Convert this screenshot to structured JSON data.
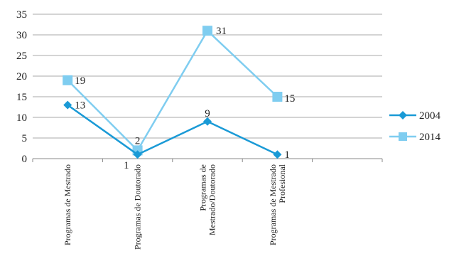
{
  "chart_data": {
    "type": "line",
    "categories": [
      [
        "Programas de Mestrado"
      ],
      [
        "Programas de Doutorado"
      ],
      [
        "Programas de",
        "Mestrado/Doutorado"
      ],
      [
        "Programas de Mestrado",
        "Profesional"
      ]
    ],
    "series": [
      {
        "name": "2004",
        "values": [
          13,
          1,
          9,
          1
        ],
        "labels": [
          "13",
          "1",
          "9",
          "1"
        ],
        "color": "#1a9ad6",
        "marker": "diamond"
      },
      {
        "name": "2014",
        "values": [
          19,
          2,
          31,
          15
        ],
        "labels": [
          "19",
          "2",
          "31",
          "15"
        ],
        "color": "#7fcdf0",
        "marker": "square"
      }
    ],
    "yticks": [
      "0",
      "5",
      "10",
      "15",
      "20",
      "25",
      "30",
      "35"
    ],
    "ylim": [
      0,
      35
    ],
    "grid": true,
    "legend": "right",
    "title": "",
    "xlabel": "",
    "ylabel": ""
  }
}
